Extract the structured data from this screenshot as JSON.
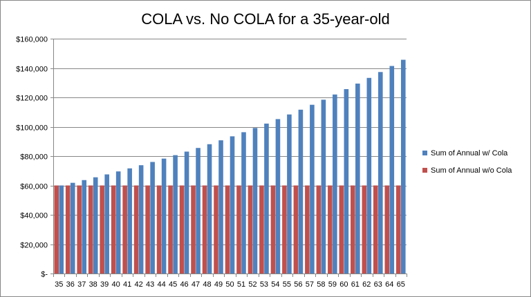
{
  "chart_data": {
    "type": "bar",
    "title": "COLA vs. No COLA for a 35-year-old",
    "xlabel": "",
    "ylabel": "",
    "ylim": [
      0,
      160000
    ],
    "yticks": [
      0,
      20000,
      40000,
      60000,
      80000,
      100000,
      120000,
      140000,
      160000
    ],
    "ytick_labels": [
      "$-",
      "$20,000",
      "$40,000",
      "$60,000",
      "$80,000",
      "$100,000",
      "$120,000",
      "$140,000",
      "$160,000"
    ],
    "grid": true,
    "legend_position": "right",
    "categories": [
      "35",
      "36",
      "37",
      "38",
      "39",
      "40",
      "41",
      "42",
      "43",
      "44",
      "45",
      "46",
      "47",
      "48",
      "49",
      "50",
      "51",
      "52",
      "53",
      "54",
      "55",
      "56",
      "57",
      "58",
      "59",
      "60",
      "61",
      "62",
      "63",
      "64",
      "65"
    ],
    "series": [
      {
        "name": "Sum of Annual w/ Cola",
        "color": "#4f81bd",
        "values": [
          60000,
          61800,
          63650,
          65560,
          67530,
          69560,
          71640,
          73790,
          76010,
          78290,
          80640,
          83060,
          85550,
          88110,
          90760,
          93480,
          96280,
          99170,
          102150,
          105210,
          108370,
          111620,
          114970,
          118420,
          121970,
          125630,
          129400,
          133280,
          137280,
          141400,
          145630
        ]
      },
      {
        "name": "Sum of Annual w/o Cola",
        "color": "#c0504d",
        "values": [
          60000,
          60000,
          60000,
          60000,
          60000,
          60000,
          60000,
          60000,
          60000,
          60000,
          60000,
          60000,
          60000,
          60000,
          60000,
          60000,
          60000,
          60000,
          60000,
          60000,
          60000,
          60000,
          60000,
          60000,
          60000,
          60000,
          60000,
          60000,
          60000,
          60000,
          60000
        ]
      }
    ]
  }
}
